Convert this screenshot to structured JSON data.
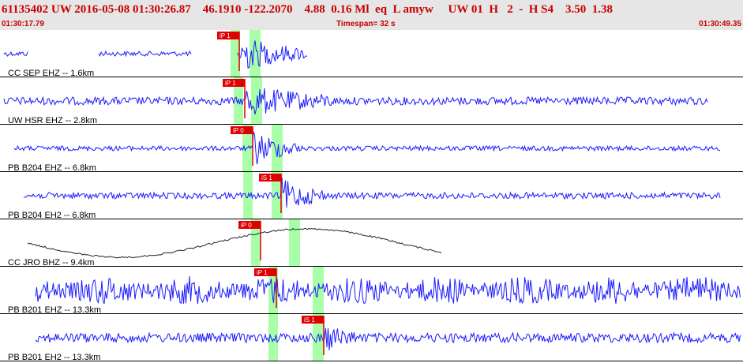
{
  "header": {
    "event_line": "61135402 UW 2016-05-08 01:30:26.87    46.1910 -122.2070    4.88  0.16 Ml  eq  L amyw     UW 01  H   2  -  H S4    3.50  1.38",
    "start_time": "01:30:17.79",
    "timespan": "Timespan=  32 s",
    "end_time": "01:30:49.35"
  },
  "colors": {
    "trace": "#1a1aff",
    "trace_alt": "#222233",
    "pick_box": "#e00000",
    "window": "#a8ffa8",
    "header_bg": "#e6e6e6",
    "header_text": "#c80000"
  },
  "traces": [
    {
      "label": "CC SEP EHZ -- 1.6km",
      "color_key": "trace",
      "pick": "iP 1"
    },
    {
      "label": "UW HSR EHZ -- 2.8km",
      "color_key": "trace",
      "pick": "iP 1"
    },
    {
      "label": "PB B204 EHZ -- 6.8km",
      "color_key": "trace",
      "pick": "iP 0"
    },
    {
      "label": "PB B204 EH2 -- 6.8km",
      "color_key": "trace",
      "pick": "iS 1"
    },
    {
      "label": "CC JRO BHZ -- 9.4km",
      "color_key": "trace_alt",
      "pick": "iP 0"
    },
    {
      "label": "PB B201 EHZ -- 13.3km",
      "color_key": "trace",
      "pick": "iP 1"
    },
    {
      "label": "PB B201 EH2 -- 13.3km",
      "color_key": "trace",
      "pick": "iS 1"
    }
  ]
}
